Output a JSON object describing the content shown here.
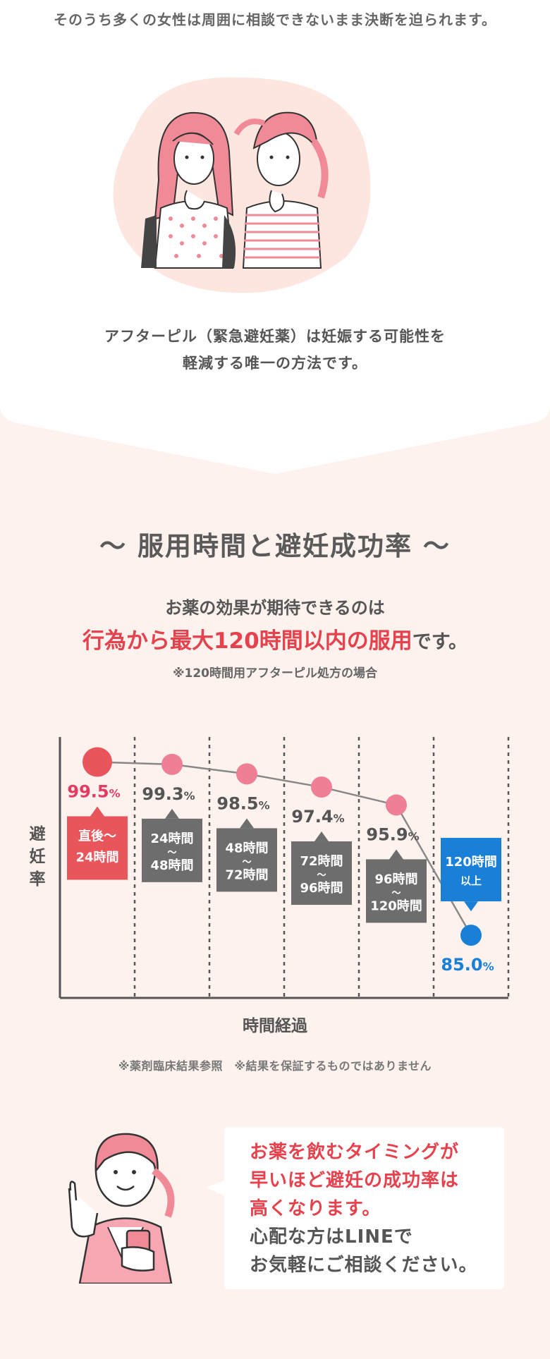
{
  "intro": {
    "text": "そのうち多くの女性は周囲に相談できないまま決断を迫られます。"
  },
  "description": {
    "line1": "アフターピル（緊急避妊薬）は妊娠する可能性を",
    "line2": "軽減する唯一の方法です。"
  },
  "section": {
    "title": "〜 服用時間と避妊成功率 〜",
    "lead_line1": "お薬の効果が期待できるのは",
    "lead_highlight": "行為から最大120時間以内の服用",
    "lead_tail": "です。",
    "note": "※120時間用アフターピル処方の場合"
  },
  "chart_data": {
    "type": "line",
    "ylabel": "避妊率",
    "xlabel": "時間経過",
    "unit": "%",
    "categories": [
      {
        "top": "直後〜",
        "bottom": "24時間"
      },
      {
        "top": "24時間",
        "bottom": "48時間"
      },
      {
        "top": "48時間",
        "bottom": "72時間"
      },
      {
        "top": "72時間",
        "bottom": "96時間"
      },
      {
        "top": "96時間",
        "bottom": "120時間"
      },
      {
        "top": "120時間",
        "bottom": "以上"
      }
    ],
    "values": [
      99.5,
      99.3,
      98.5,
      97.4,
      95.9,
      85.0
    ],
    "value_labels": [
      "99.5",
      "99.3",
      "98.5",
      "97.4",
      "95.9",
      "85.0"
    ],
    "colors": {
      "first": "#e8565b",
      "middle_point": "#ef7f95",
      "middle_box": "#6d6d6d",
      "last": "#1a7fd6",
      "first_label": "#e33b62",
      "line": "#888888"
    },
    "grid": "dashed vertical",
    "footnote": "※薬剤臨床結果参照　※結果を保証するものではありません"
  },
  "bubble": {
    "red_line1": "お薬を飲むタイミングが",
    "red_line2": "早いほど避妊の成功率は",
    "red_line3": "高くなります。",
    "gray_line1": "心配な方はLINEで",
    "gray_line2": "お気軽にご相談ください。"
  },
  "colors": {
    "background": "#fdf2ee",
    "accent_red": "#e6424d",
    "accent_blue": "#1a7fd6",
    "pink": "#f08a97"
  }
}
